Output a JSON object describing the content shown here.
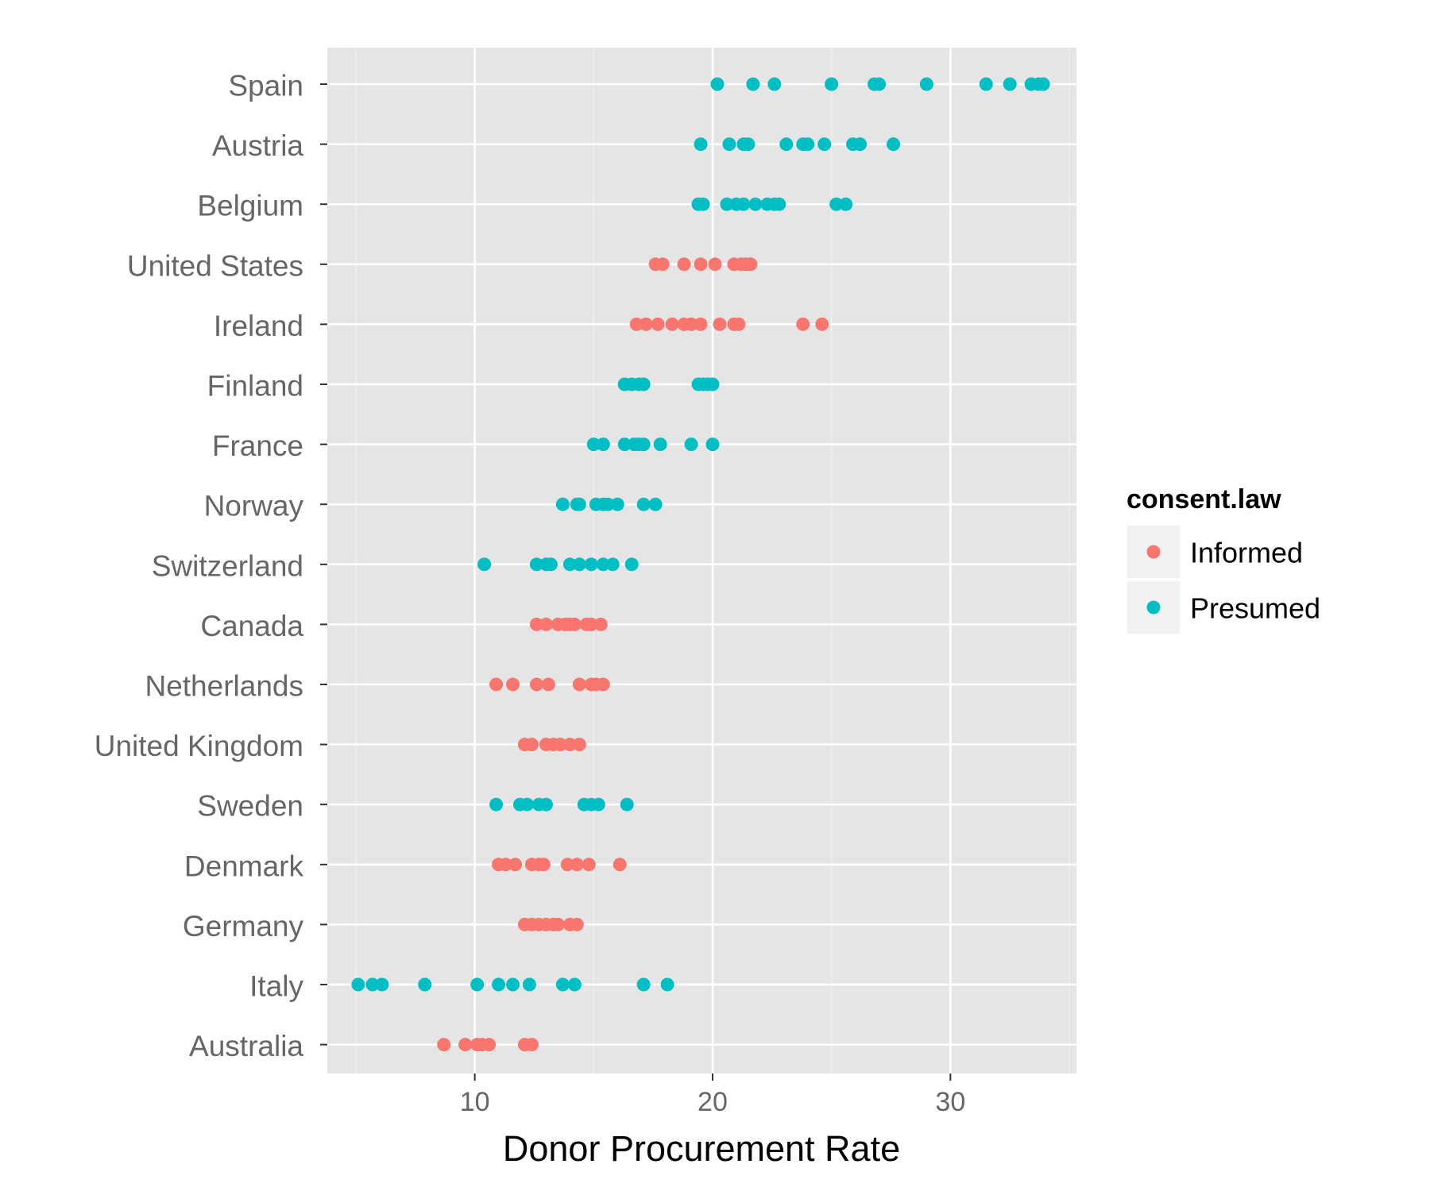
{
  "chart_data": {
    "type": "scatter",
    "xlabel": "Donor Procurement Rate",
    "ylabel": "",
    "xlim": [
      3.8,
      35.3
    ],
    "x_ticks": [
      10,
      20,
      30
    ],
    "x_minor_ticks": [
      5,
      15,
      25,
      35
    ],
    "grid": true,
    "legend": {
      "title": "consent.law",
      "position": "right",
      "entries": [
        {
          "name": "Informed",
          "color": "#f8766d"
        },
        {
          "name": "Presumed",
          "color": "#00bfc4"
        }
      ]
    },
    "categories": [
      "Spain",
      "Austria",
      "Belgium",
      "United States",
      "Ireland",
      "Finland",
      "France",
      "Norway",
      "Switzerland",
      "Canada",
      "Netherlands",
      "United Kingdom",
      "Sweden",
      "Denmark",
      "Germany",
      "Italy",
      "Australia"
    ],
    "series": [
      {
        "category": "Spain",
        "consent_law": "Presumed",
        "values": [
          20.2,
          21.7,
          22.6,
          25.0,
          26.8,
          27.0,
          29.0,
          31.5,
          32.5,
          33.4,
          33.7,
          33.9
        ]
      },
      {
        "category": "Austria",
        "consent_law": "Presumed",
        "values": [
          19.5,
          20.7,
          21.3,
          21.5,
          23.1,
          23.8,
          24.0,
          24.7,
          25.9,
          26.2,
          27.6
        ]
      },
      {
        "category": "Belgium",
        "consent_law": "Presumed",
        "values": [
          19.4,
          19.6,
          20.6,
          21.0,
          21.3,
          21.8,
          22.3,
          22.6,
          22.8,
          25.2,
          25.6
        ]
      },
      {
        "category": "United States",
        "consent_law": "Informed",
        "values": [
          17.6,
          17.9,
          18.8,
          19.5,
          20.1,
          20.9,
          21.2,
          21.4,
          21.6
        ]
      },
      {
        "category": "Ireland",
        "consent_law": "Informed",
        "values": [
          16.8,
          17.2,
          17.7,
          18.3,
          18.8,
          19.1,
          19.5,
          20.3,
          20.9,
          21.1,
          23.8,
          24.6
        ]
      },
      {
        "category": "Finland",
        "consent_law": "Presumed",
        "values": [
          16.3,
          16.6,
          16.9,
          17.1,
          19.4,
          19.6,
          19.8,
          20.0
        ]
      },
      {
        "category": "France",
        "consent_law": "Presumed",
        "values": [
          15.0,
          15.4,
          16.3,
          16.7,
          16.9,
          17.1,
          17.8,
          19.1,
          20.0
        ]
      },
      {
        "category": "Norway",
        "consent_law": "Presumed",
        "values": [
          13.7,
          14.3,
          14.4,
          15.1,
          15.4,
          15.6,
          16.0,
          17.1,
          17.6
        ]
      },
      {
        "category": "Switzerland",
        "consent_law": "Presumed",
        "values": [
          10.4,
          12.6,
          13.0,
          13.2,
          14.0,
          14.4,
          14.9,
          15.4,
          15.8,
          16.6
        ]
      },
      {
        "category": "Canada",
        "consent_law": "Informed",
        "values": [
          12.6,
          13.0,
          13.5,
          13.8,
          14.0,
          14.2,
          14.7,
          14.9,
          15.3
        ]
      },
      {
        "category": "Netherlands",
        "consent_law": "Informed",
        "values": [
          10.9,
          11.6,
          12.6,
          13.1,
          14.4,
          14.9,
          15.1,
          15.4
        ]
      },
      {
        "category": "United Kingdom",
        "consent_law": "Informed",
        "values": [
          12.1,
          12.4,
          13.0,
          13.3,
          13.6,
          14.0,
          14.4
        ]
      },
      {
        "category": "Sweden",
        "consent_law": "Presumed",
        "values": [
          10.9,
          11.9,
          12.2,
          12.7,
          13.0,
          14.6,
          14.9,
          15.2,
          16.4
        ]
      },
      {
        "category": "Denmark",
        "consent_law": "Informed",
        "values": [
          11.0,
          11.3,
          11.7,
          12.4,
          12.7,
          12.9,
          13.9,
          14.3,
          14.8,
          16.1
        ]
      },
      {
        "category": "Germany",
        "consent_law": "Informed",
        "values": [
          12.1,
          12.4,
          12.7,
          13.0,
          13.3,
          13.5,
          14.0,
          14.3
        ]
      },
      {
        "category": "Italy",
        "consent_law": "Presumed",
        "values": [
          5.1,
          5.7,
          6.1,
          7.9,
          10.1,
          11.0,
          11.6,
          12.3,
          13.7,
          14.2,
          17.1,
          18.1
        ]
      },
      {
        "category": "Australia",
        "consent_law": "Informed",
        "values": [
          8.7,
          9.6,
          10.1,
          10.3,
          10.6,
          12.1,
          12.4
        ]
      }
    ]
  }
}
